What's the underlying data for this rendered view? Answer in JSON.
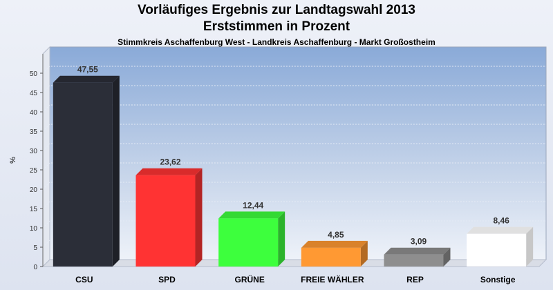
{
  "header": {
    "title_line1": "Vorläufiges Ergebnis zur Landtagswahl 2013",
    "title_line2": "Erststimmen in Prozent",
    "subtitle": "Stimmkreis Aschaffenburg West - Landkreis Aschaffenburg - Markt Großostheim"
  },
  "chart_data": {
    "type": "bar",
    "title": "Vorläufiges Ergebnis zur Landtagswahl 2013 Erststimmen in Prozent",
    "subtitle": "Stimmkreis Aschaffenburg West - Landkreis Aschaffenburg - Markt Großostheim",
    "ylabel": "%",
    "xlabel": "",
    "categories": [
      "CSU",
      "SPD",
      "GRÜNE",
      "FREIE WÄHLER",
      "REP",
      "Sonstige"
    ],
    "values": [
      47.55,
      23.62,
      12.44,
      4.85,
      3.09,
      8.46
    ],
    "value_labels": [
      "47,55",
      "23,62",
      "12,44",
      "4,85",
      "3,09",
      "8,46"
    ],
    "ylim": [
      0,
      55
    ],
    "yticks": [
      0,
      5,
      10,
      15,
      20,
      25,
      30,
      35,
      40,
      45,
      50
    ],
    "grid": true,
    "colors": [
      "#2b2e38",
      "#ff3333",
      "#3dff3d",
      "#ff9933",
      "#8e8e8e",
      "#ffffff"
    ],
    "plot_background": "#8aaad6"
  }
}
